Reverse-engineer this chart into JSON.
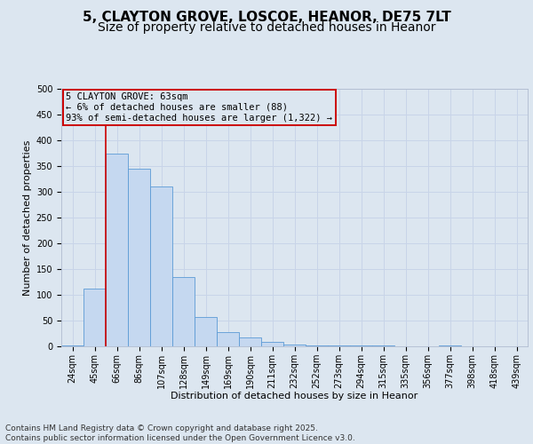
{
  "title_line1": "5, CLAYTON GROVE, LOSCOE, HEANOR, DE75 7LT",
  "title_line2": "Size of property relative to detached houses in Heanor",
  "xlabel": "Distribution of detached houses by size in Heanor",
  "ylabel": "Number of detached properties",
  "categories": [
    "24sqm",
    "45sqm",
    "66sqm",
    "86sqm",
    "107sqm",
    "128sqm",
    "149sqm",
    "169sqm",
    "190sqm",
    "211sqm",
    "232sqm",
    "252sqm",
    "273sqm",
    "294sqm",
    "315sqm",
    "335sqm",
    "356sqm",
    "377sqm",
    "398sqm",
    "418sqm",
    "439sqm"
  ],
  "values": [
    2,
    112,
    375,
    345,
    310,
    135,
    57,
    27,
    18,
    8,
    4,
    2,
    2,
    2,
    2,
    0,
    0,
    2,
    0,
    0,
    0
  ],
  "bar_color": "#c5d8f0",
  "bar_edge_color": "#5b9bd5",
  "grid_color": "#c8d4e8",
  "background_color": "#dce6f0",
  "vline_color": "#cc0000",
  "vline_x": 2.0,
  "annotation_text": "5 CLAYTON GROVE: 63sqm\n← 6% of detached houses are smaller (88)\n93% of semi-detached houses are larger (1,322) →",
  "annotation_box_color": "#cc0000",
  "ylim": [
    0,
    500
  ],
  "yticks": [
    0,
    50,
    100,
    150,
    200,
    250,
    300,
    350,
    400,
    450,
    500
  ],
  "footer_text": "Contains HM Land Registry data © Crown copyright and database right 2025.\nContains public sector information licensed under the Open Government Licence v3.0.",
  "title_fontsize": 11,
  "subtitle_fontsize": 10,
  "axis_label_fontsize": 8,
  "tick_fontsize": 7,
  "annotation_fontsize": 7.5
}
